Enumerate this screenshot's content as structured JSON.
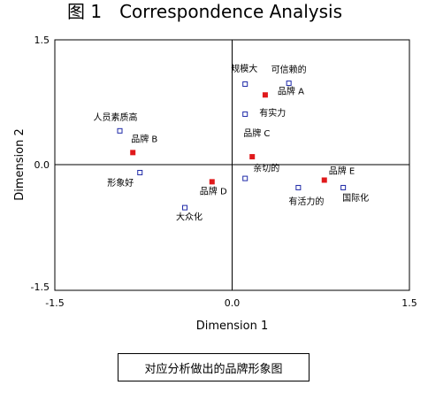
{
  "figure": {
    "title": "图 1　Correspondence Analysis",
    "caption": "对应分析做出的品牌形象图"
  },
  "chart_data": {
    "type": "scatter",
    "title": "图 1　Correspondence Analysis",
    "xlabel": "Dimension 1",
    "ylabel": "Dimension 2",
    "xlim": [
      -1.5,
      1.5
    ],
    "ylim": [
      -1.5,
      1.5
    ],
    "x_ticks": [
      "-1.5",
      "0.0",
      "1.5"
    ],
    "y_ticks": [
      "1.5",
      "0.0",
      "-1.5"
    ],
    "grid": false,
    "reference_lines": [
      0,
      0
    ],
    "series": [
      {
        "marker": "filled-square",
        "color": "#e0191b",
        "points": [
          {
            "label": "品牌 A",
            "x": 0.28,
            "y": 0.84
          },
          {
            "label": "品牌 B",
            "x": -0.84,
            "y": 0.15
          },
          {
            "label": "品牌 C",
            "x": 0.17,
            "y": 0.1
          },
          {
            "label": "品牌 D",
            "x": -0.17,
            "y": -0.2
          },
          {
            "label": "品牌 E",
            "x": 0.78,
            "y": -0.18
          }
        ]
      },
      {
        "marker": "open-square",
        "color": "#1f2aa8",
        "points": [
          {
            "label": "规模大",
            "x": 0.11,
            "y": 0.97
          },
          {
            "label": "可信赖的",
            "x": 0.48,
            "y": 0.98
          },
          {
            "label": "有实力",
            "x": 0.11,
            "y": 0.61
          },
          {
            "label": "人员素质高",
            "x": -0.95,
            "y": 0.41
          },
          {
            "label": "形象好",
            "x": -0.78,
            "y": -0.09
          },
          {
            "label": "亲切的",
            "x": 0.11,
            "y": -0.16
          },
          {
            "label": "大众化",
            "x": -0.4,
            "y": -0.51
          },
          {
            "label": "有活力的",
            "x": 0.56,
            "y": -0.27
          },
          {
            "label": "国际化",
            "x": 0.94,
            "y": -0.27
          }
        ]
      }
    ]
  }
}
